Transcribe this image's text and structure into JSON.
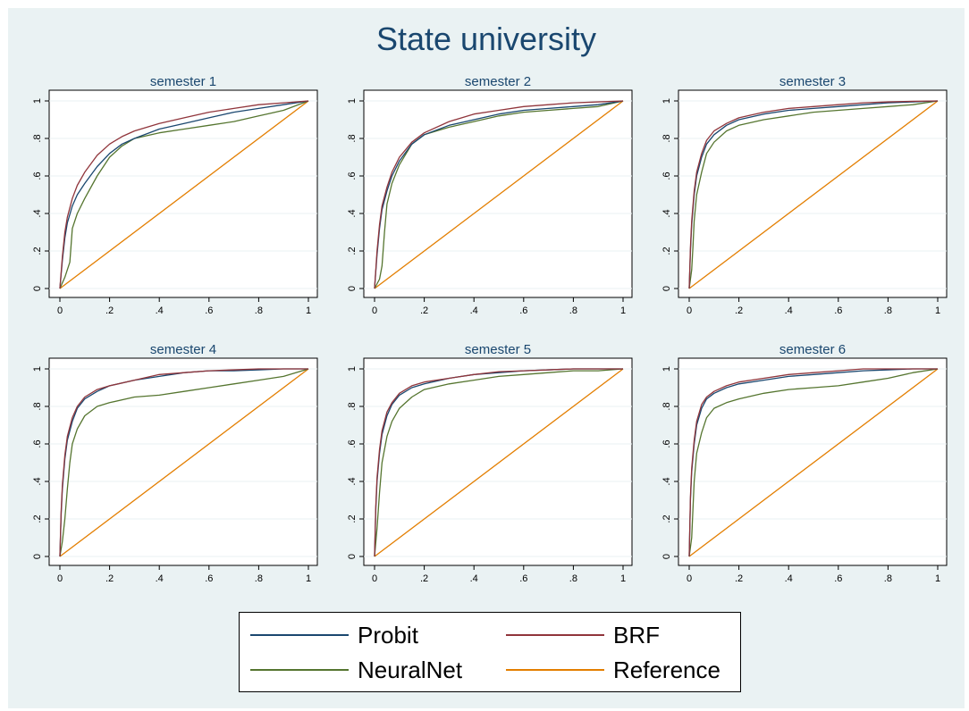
{
  "title": "State university",
  "legend": {
    "items": [
      {
        "label": "Probit",
        "color": "#1a476f"
      },
      {
        "label": "BRF",
        "color": "#90353b"
      },
      {
        "label": "NeuralNet",
        "color": "#55752f"
      },
      {
        "label": "Reference",
        "color": "#e37e00"
      }
    ]
  },
  "chart_data": [
    {
      "type": "line",
      "title": "semester 1",
      "xlim": [
        0,
        1
      ],
      "ylim": [
        0,
        1
      ],
      "xticks": [
        "0",
        ".2",
        ".4",
        ".6",
        ".8",
        "1"
      ],
      "yticks": [
        "0",
        ".2",
        ".4",
        ".6",
        ".8",
        "1"
      ],
      "grid": true,
      "series": [
        {
          "name": "Probit",
          "x": [
            0,
            0.01,
            0.02,
            0.03,
            0.05,
            0.07,
            0.1,
            0.15,
            0.2,
            0.25,
            0.3,
            0.4,
            0.5,
            0.6,
            0.7,
            0.8,
            0.9,
            1
          ],
          "y": [
            0,
            0.15,
            0.27,
            0.35,
            0.44,
            0.5,
            0.56,
            0.65,
            0.72,
            0.77,
            0.8,
            0.85,
            0.88,
            0.91,
            0.94,
            0.96,
            0.98,
            1
          ]
        },
        {
          "name": "BRF",
          "x": [
            0,
            0.01,
            0.02,
            0.03,
            0.05,
            0.07,
            0.1,
            0.15,
            0.2,
            0.25,
            0.3,
            0.4,
            0.5,
            0.6,
            0.7,
            0.8,
            0.9,
            1
          ],
          "y": [
            0,
            0.17,
            0.3,
            0.38,
            0.48,
            0.55,
            0.62,
            0.71,
            0.77,
            0.81,
            0.84,
            0.88,
            0.91,
            0.94,
            0.96,
            0.98,
            0.99,
            1
          ]
        },
        {
          "name": "NeuralNet",
          "x": [
            0,
            0.02,
            0.04,
            0.05,
            0.07,
            0.1,
            0.15,
            0.2,
            0.25,
            0.3,
            0.4,
            0.5,
            0.6,
            0.7,
            0.8,
            0.9,
            1
          ],
          "y": [
            0,
            0.06,
            0.14,
            0.32,
            0.4,
            0.48,
            0.6,
            0.7,
            0.76,
            0.8,
            0.83,
            0.85,
            0.87,
            0.89,
            0.92,
            0.95,
            1
          ]
        },
        {
          "name": "Reference",
          "x": [
            0,
            1
          ],
          "y": [
            0,
            1
          ]
        }
      ]
    },
    {
      "type": "line",
      "title": "semester 2",
      "xlim": [
        0,
        1
      ],
      "ylim": [
        0,
        1
      ],
      "xticks": [
        "0",
        ".2",
        ".4",
        ".6",
        ".8",
        "1"
      ],
      "yticks": [
        "0",
        ".2",
        ".4",
        ".6",
        ".8",
        "1"
      ],
      "grid": true,
      "series": [
        {
          "name": "Probit",
          "x": [
            0,
            0.01,
            0.02,
            0.03,
            0.05,
            0.07,
            0.1,
            0.15,
            0.2,
            0.3,
            0.4,
            0.5,
            0.6,
            0.7,
            0.8,
            0.9,
            1
          ],
          "y": [
            0,
            0.18,
            0.32,
            0.42,
            0.52,
            0.6,
            0.68,
            0.77,
            0.82,
            0.87,
            0.9,
            0.93,
            0.95,
            0.96,
            0.97,
            0.98,
            1
          ]
        },
        {
          "name": "BRF",
          "x": [
            0,
            0.01,
            0.02,
            0.03,
            0.05,
            0.07,
            0.1,
            0.15,
            0.2,
            0.3,
            0.4,
            0.5,
            0.6,
            0.7,
            0.8,
            0.9,
            1
          ],
          "y": [
            0,
            0.2,
            0.34,
            0.44,
            0.54,
            0.62,
            0.7,
            0.78,
            0.83,
            0.89,
            0.93,
            0.95,
            0.97,
            0.98,
            0.99,
            0.995,
            1
          ]
        },
        {
          "name": "NeuralNet",
          "x": [
            0,
            0.02,
            0.03,
            0.04,
            0.05,
            0.07,
            0.1,
            0.15,
            0.2,
            0.3,
            0.4,
            0.5,
            0.6,
            0.7,
            0.8,
            0.9,
            1
          ],
          "y": [
            0,
            0.05,
            0.12,
            0.3,
            0.45,
            0.56,
            0.66,
            0.77,
            0.82,
            0.86,
            0.89,
            0.92,
            0.94,
            0.95,
            0.96,
            0.97,
            1
          ]
        },
        {
          "name": "Reference",
          "x": [
            0,
            1
          ],
          "y": [
            0,
            1
          ]
        }
      ]
    },
    {
      "type": "line",
      "title": "semester 3",
      "xlim": [
        0,
        1
      ],
      "ylim": [
        0,
        1
      ],
      "xticks": [
        "0",
        ".2",
        ".4",
        ".6",
        ".8",
        "1"
      ],
      "yticks": [
        "0",
        ".2",
        ".4",
        ".6",
        ".8",
        "1"
      ],
      "grid": true,
      "series": [
        {
          "name": "Probit",
          "x": [
            0,
            0.005,
            0.01,
            0.02,
            0.03,
            0.05,
            0.07,
            0.1,
            0.15,
            0.2,
            0.3,
            0.4,
            0.5,
            0.6,
            0.7,
            0.8,
            0.9,
            1
          ],
          "y": [
            0,
            0.2,
            0.34,
            0.5,
            0.6,
            0.7,
            0.77,
            0.82,
            0.87,
            0.9,
            0.93,
            0.95,
            0.96,
            0.97,
            0.98,
            0.99,
            0.995,
            1
          ]
        },
        {
          "name": "BRF",
          "x": [
            0,
            0.005,
            0.01,
            0.02,
            0.03,
            0.05,
            0.07,
            0.1,
            0.15,
            0.2,
            0.3,
            0.4,
            0.5,
            0.6,
            0.7,
            0.8,
            0.9,
            1
          ],
          "y": [
            0,
            0.22,
            0.36,
            0.52,
            0.62,
            0.72,
            0.79,
            0.84,
            0.88,
            0.91,
            0.94,
            0.96,
            0.97,
            0.98,
            0.99,
            0.995,
            0.998,
            1
          ]
        },
        {
          "name": "NeuralNet",
          "x": [
            0,
            0.01,
            0.015,
            0.02,
            0.03,
            0.05,
            0.07,
            0.1,
            0.15,
            0.2,
            0.3,
            0.4,
            0.5,
            0.6,
            0.7,
            0.8,
            0.9,
            1
          ],
          "y": [
            0,
            0.1,
            0.22,
            0.36,
            0.5,
            0.62,
            0.72,
            0.78,
            0.84,
            0.87,
            0.9,
            0.92,
            0.94,
            0.95,
            0.96,
            0.97,
            0.98,
            1
          ]
        },
        {
          "name": "Reference",
          "x": [
            0,
            1
          ],
          "y": [
            0,
            1
          ]
        }
      ]
    },
    {
      "type": "line",
      "title": "semester 4",
      "xlim": [
        0,
        1
      ],
      "ylim": [
        0,
        1
      ],
      "xticks": [
        "0",
        ".2",
        ".4",
        ".6",
        ".8",
        "1"
      ],
      "yticks": [
        "0",
        ".2",
        ".4",
        ".6",
        ".8",
        "1"
      ],
      "grid": true,
      "series": [
        {
          "name": "Probit",
          "x": [
            0,
            0.005,
            0.01,
            0.02,
            0.03,
            0.05,
            0.07,
            0.1,
            0.15,
            0.2,
            0.3,
            0.4,
            0.5,
            0.6,
            0.7,
            0.8,
            0.9,
            1
          ],
          "y": [
            0,
            0.22,
            0.36,
            0.52,
            0.62,
            0.72,
            0.79,
            0.84,
            0.88,
            0.91,
            0.94,
            0.96,
            0.98,
            0.99,
            0.99,
            0.995,
            1,
            1
          ]
        },
        {
          "name": "BRF",
          "x": [
            0,
            0.005,
            0.01,
            0.02,
            0.03,
            0.05,
            0.07,
            0.1,
            0.15,
            0.2,
            0.3,
            0.4,
            0.5,
            0.6,
            0.7,
            0.8,
            0.9,
            1
          ],
          "y": [
            0,
            0.24,
            0.38,
            0.54,
            0.64,
            0.74,
            0.8,
            0.85,
            0.89,
            0.91,
            0.94,
            0.97,
            0.98,
            0.99,
            0.995,
            1,
            1,
            1
          ]
        },
        {
          "name": "NeuralNet",
          "x": [
            0,
            0.01,
            0.02,
            0.03,
            0.04,
            0.05,
            0.07,
            0.1,
            0.15,
            0.2,
            0.3,
            0.4,
            0.5,
            0.6,
            0.7,
            0.8,
            0.9,
            1
          ],
          "y": [
            0,
            0.08,
            0.2,
            0.36,
            0.5,
            0.6,
            0.68,
            0.75,
            0.8,
            0.82,
            0.85,
            0.86,
            0.88,
            0.9,
            0.92,
            0.94,
            0.96,
            1
          ]
        },
        {
          "name": "Reference",
          "x": [
            0,
            1
          ],
          "y": [
            0,
            1
          ]
        }
      ]
    },
    {
      "type": "line",
      "title": "semester 5",
      "xlim": [
        0,
        1
      ],
      "ylim": [
        0,
        1
      ],
      "xticks": [
        "0",
        ".2",
        ".4",
        ".6",
        ".8",
        "1"
      ],
      "yticks": [
        "0",
        ".2",
        ".4",
        ".6",
        ".8",
        "1"
      ],
      "grid": true,
      "series": [
        {
          "name": "Probit",
          "x": [
            0,
            0.005,
            0.01,
            0.02,
            0.03,
            0.05,
            0.07,
            0.1,
            0.15,
            0.2,
            0.3,
            0.4,
            0.5,
            0.6,
            0.7,
            0.8,
            0.9,
            1
          ],
          "y": [
            0,
            0.25,
            0.4,
            0.55,
            0.65,
            0.75,
            0.81,
            0.86,
            0.9,
            0.92,
            0.95,
            0.97,
            0.98,
            0.99,
            0.995,
            1,
            1,
            1
          ]
        },
        {
          "name": "BRF",
          "x": [
            0,
            0.005,
            0.01,
            0.02,
            0.03,
            0.05,
            0.07,
            0.1,
            0.15,
            0.2,
            0.3,
            0.4,
            0.5,
            0.6,
            0.7,
            0.8,
            0.9,
            1
          ],
          "y": [
            0,
            0.27,
            0.42,
            0.57,
            0.67,
            0.77,
            0.82,
            0.87,
            0.91,
            0.93,
            0.95,
            0.97,
            0.985,
            0.99,
            0.995,
            1,
            1,
            1
          ]
        },
        {
          "name": "NeuralNet",
          "x": [
            0,
            0.01,
            0.02,
            0.03,
            0.05,
            0.07,
            0.1,
            0.15,
            0.2,
            0.3,
            0.4,
            0.5,
            0.6,
            0.7,
            0.8,
            0.9,
            1
          ],
          "y": [
            0,
            0.15,
            0.34,
            0.5,
            0.64,
            0.72,
            0.79,
            0.85,
            0.89,
            0.92,
            0.94,
            0.96,
            0.97,
            0.98,
            0.99,
            0.99,
            1
          ]
        },
        {
          "name": "Reference",
          "x": [
            0,
            1
          ],
          "y": [
            0,
            1
          ]
        }
      ]
    },
    {
      "type": "line",
      "title": "semester 6",
      "xlim": [
        0,
        1
      ],
      "ylim": [
        0,
        1
      ],
      "xticks": [
        "0",
        ".2",
        ".4",
        ".6",
        ".8",
        "1"
      ],
      "yticks": [
        "0",
        ".2",
        ".4",
        ".6",
        ".8",
        "1"
      ],
      "grid": true,
      "series": [
        {
          "name": "Probit",
          "x": [
            0,
            0.005,
            0.01,
            0.02,
            0.03,
            0.05,
            0.07,
            0.1,
            0.15,
            0.2,
            0.3,
            0.4,
            0.5,
            0.6,
            0.7,
            0.8,
            0.9,
            1
          ],
          "y": [
            0,
            0.3,
            0.45,
            0.6,
            0.7,
            0.79,
            0.84,
            0.87,
            0.9,
            0.92,
            0.94,
            0.96,
            0.97,
            0.98,
            0.99,
            0.995,
            1,
            1
          ]
        },
        {
          "name": "BRF",
          "x": [
            0,
            0.005,
            0.01,
            0.02,
            0.03,
            0.05,
            0.07,
            0.1,
            0.15,
            0.2,
            0.3,
            0.4,
            0.5,
            0.6,
            0.7,
            0.8,
            0.9,
            1
          ],
          "y": [
            0,
            0.32,
            0.47,
            0.62,
            0.72,
            0.81,
            0.85,
            0.88,
            0.91,
            0.93,
            0.95,
            0.97,
            0.98,
            0.99,
            1,
            1,
            1,
            1
          ]
        },
        {
          "name": "NeuralNet",
          "x": [
            0,
            0.01,
            0.015,
            0.02,
            0.03,
            0.05,
            0.07,
            0.1,
            0.15,
            0.2,
            0.3,
            0.4,
            0.5,
            0.6,
            0.7,
            0.8,
            0.9,
            1
          ],
          "y": [
            0,
            0.1,
            0.25,
            0.4,
            0.55,
            0.66,
            0.74,
            0.79,
            0.82,
            0.84,
            0.87,
            0.89,
            0.9,
            0.91,
            0.93,
            0.95,
            0.98,
            1
          ]
        },
        {
          "name": "Reference",
          "x": [
            0,
            1
          ],
          "y": [
            0,
            1
          ]
        }
      ]
    }
  ]
}
